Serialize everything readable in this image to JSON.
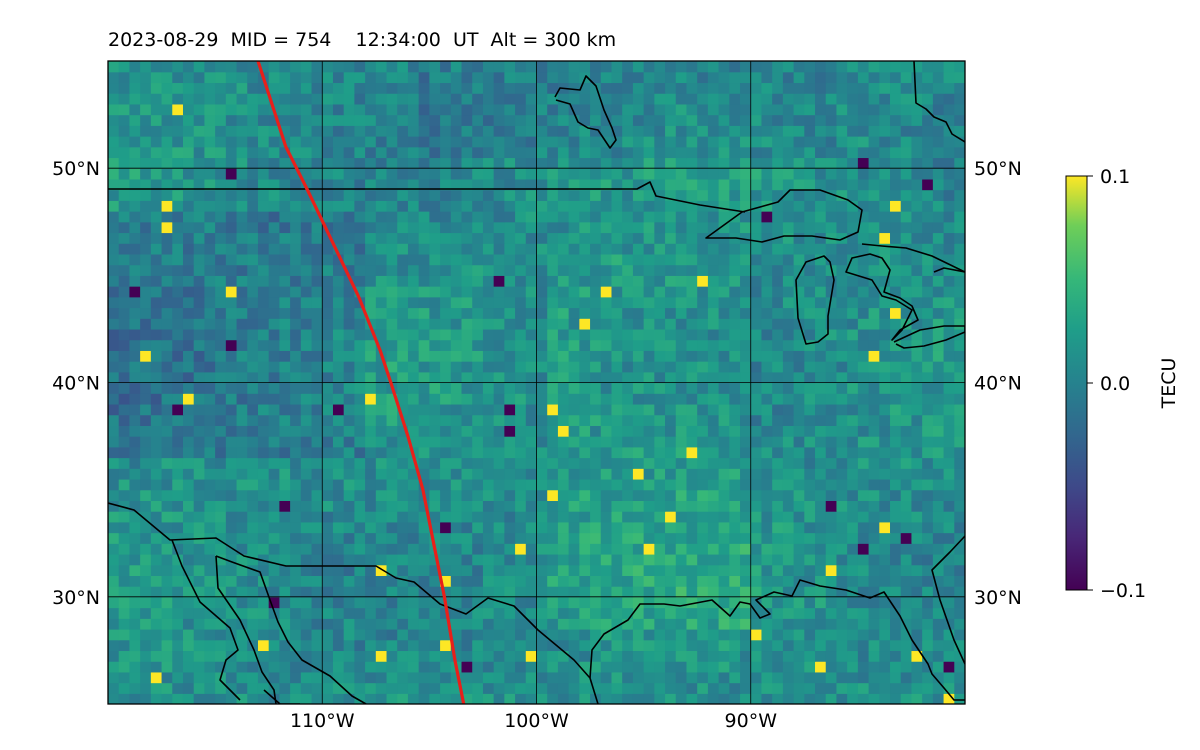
{
  "header": {
    "title": "2023-08-29  MID = 754    12:34:00  UT  Alt = 300 km"
  },
  "map": {
    "projection": "equirectangular",
    "lon_range": [
      -120,
      -80
    ],
    "lat_range": [
      25,
      55
    ],
    "x_ticks": [
      {
        "lon": -110,
        "label": "110°W"
      },
      {
        "lon": -100,
        "label": "100°W"
      },
      {
        "lon": -90,
        "label": "90°W"
      }
    ],
    "y_ticks": [
      {
        "lat": 30,
        "label": "30°N"
      },
      {
        "lat": 40,
        "label": "40°N"
      },
      {
        "lat": 50,
        "label": "50°N"
      }
    ],
    "gridlines": true,
    "field_resolution_deg": 0.5,
    "eclipse_path_color": "#e8201a",
    "eclipse_path": [
      [
        -113,
        55
      ],
      [
        -111.7,
        51
      ],
      [
        -110.7,
        49
      ],
      [
        -109.5,
        46.5
      ],
      [
        -108.3,
        44
      ],
      [
        -107.3,
        41.5
      ],
      [
        -106.8,
        40
      ],
      [
        -106,
        37.5
      ],
      [
        -105.3,
        35
      ],
      [
        -104.7,
        32
      ],
      [
        -104.3,
        30
      ],
      [
        -103.8,
        27
      ],
      [
        -103.4,
        25
      ]
    ]
  },
  "colorbar": {
    "label": "TECU",
    "vmin": -0.1,
    "vmax": 0.1,
    "ticks": [
      {
        "value": 0.1,
        "label": "0.1"
      },
      {
        "value": 0.0,
        "label": "0.0"
      },
      {
        "value": -0.1,
        "label": "−0.1"
      }
    ],
    "colormap": "viridis"
  }
}
